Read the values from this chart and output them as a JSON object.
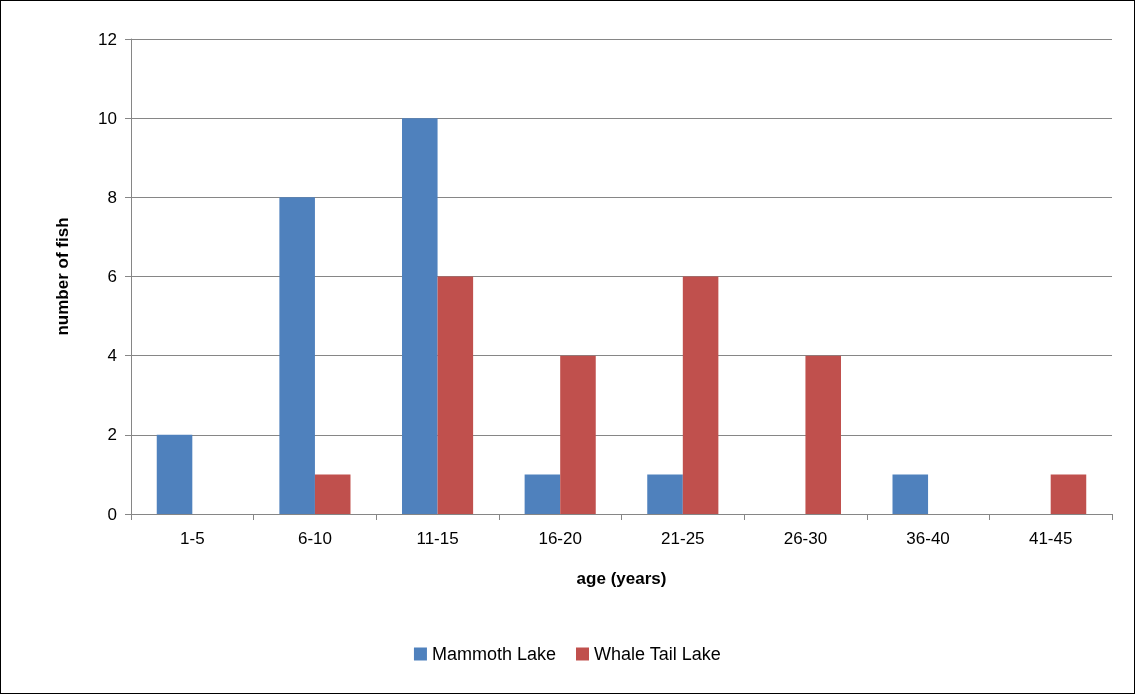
{
  "chart_data": {
    "type": "bar",
    "xlabel": "age (years)",
    "ylabel": "number of fish",
    "categories": [
      "1-5",
      "6-10",
      "11-15",
      "16-20",
      "21-25",
      "26-30",
      "36-40",
      "41-45"
    ],
    "series": [
      {
        "name": "Mammoth Lake",
        "color": "#4f81bd",
        "values": [
          2,
          8,
          10,
          1,
          1,
          0,
          1,
          0
        ]
      },
      {
        "name": "Whale Tail Lake",
        "color": "#c0504d",
        "values": [
          0,
          1,
          6,
          4,
          6,
          4,
          0,
          1
        ]
      }
    ],
    "ylim": [
      0,
      12
    ],
    "yticks": [
      0,
      2,
      4,
      6,
      8,
      10,
      12
    ],
    "grid": "y",
    "legend": "bottom"
  }
}
